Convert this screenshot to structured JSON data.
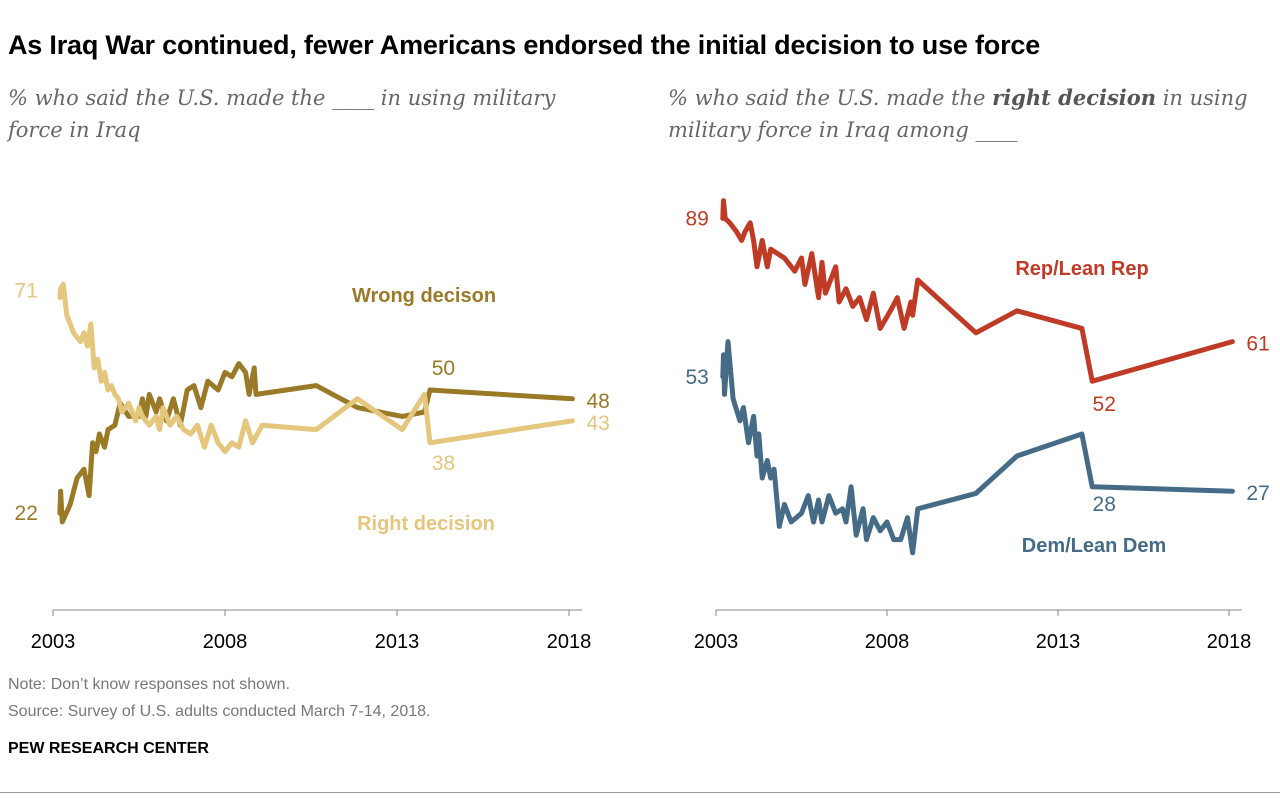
{
  "title": "As Iraq War continued, fewer Americans endorsed the initial decision to use force",
  "left_subtitle": "% who said the U.S. made the ____ in using military force in Iraq",
  "right_subtitle": {
    "pre": "% who said the U.S. made the ",
    "bold": "right decision",
    "post": " in using military force in Iraq among ____"
  },
  "note": "Note: Don’t know responses not shown.",
  "source": "Source: Survey of U.S. adults conducted March 7-14, 2018.",
  "brand": "PEW RESEARCH CENTER",
  "chart_data": [
    {
      "type": "line",
      "xlim": [
        2003,
        2018
      ],
      "ylim": [
        0,
        100
      ],
      "xticks": [
        "2003",
        "2008",
        "2013",
        "2018"
      ],
      "grid": false,
      "series": [
        {
          "name": "Wrong decison",
          "color": "#9a7a26",
          "labels": [
            {
              "text": "22",
              "x": 2003.2,
              "y": 22
            },
            {
              "text": "50",
              "x": 2014,
              "y": 50
            },
            {
              "text": "48",
              "x": 2018.1,
              "y": 48
            }
          ],
          "points": [
            [
              2003.2,
              22
            ],
            [
              2003.22,
              27
            ],
            [
              2003.27,
              20
            ],
            [
              2003.5,
              24
            ],
            [
              2003.7,
              30
            ],
            [
              2003.9,
              32
            ],
            [
              2004.05,
              26
            ],
            [
              2004.15,
              38
            ],
            [
              2004.25,
              36
            ],
            [
              2004.35,
              40
            ],
            [
              2004.5,
              37
            ],
            [
              2004.6,
              41
            ],
            [
              2004.8,
              42
            ],
            [
              2004.95,
              47
            ],
            [
              2005.2,
              44
            ],
            [
              2005.5,
              44
            ],
            [
              2005.6,
              48
            ],
            [
              2005.7,
              44
            ],
            [
              2005.8,
              49
            ],
            [
              2006.0,
              45
            ],
            [
              2006.1,
              48
            ],
            [
              2006.3,
              43
            ],
            [
              2006.5,
              48
            ],
            [
              2006.7,
              42
            ],
            [
              2006.9,
              50
            ],
            [
              2007.1,
              51
            ],
            [
              2007.3,
              46
            ],
            [
              2007.5,
              52
            ],
            [
              2007.8,
              50
            ],
            [
              2008.0,
              54
            ],
            [
              2008.2,
              53
            ],
            [
              2008.4,
              56
            ],
            [
              2008.6,
              54
            ],
            [
              2008.7,
              49
            ],
            [
              2008.85,
              55
            ],
            [
              2008.9,
              49
            ],
            [
              2010.65,
              51
            ],
            [
              2011.85,
              46
            ],
            [
              2013.15,
              44
            ],
            [
              2013.8,
              45
            ],
            [
              2013.96,
              50
            ],
            [
              2018.1,
              48
            ]
          ]
        },
        {
          "name": "Right decision",
          "color": "#e4c67c",
          "labels": [
            {
              "text": "71",
              "x": 2003.2,
              "y": 71
            },
            {
              "text": "38",
              "x": 2014,
              "y": 38
            },
            {
              "text": "43",
              "x": 2018.1,
              "y": 43
            }
          ],
          "points": [
            [
              2003.2,
              71
            ],
            [
              2003.22,
              73
            ],
            [
              2003.3,
              74
            ],
            [
              2003.4,
              67
            ],
            [
              2003.6,
              63
            ],
            [
              2003.8,
              61
            ],
            [
              2003.9,
              63
            ],
            [
              2004.0,
              60
            ],
            [
              2004.1,
              65
            ],
            [
              2004.2,
              55
            ],
            [
              2004.3,
              57
            ],
            [
              2004.4,
              52
            ],
            [
              2004.5,
              54
            ],
            [
              2004.6,
              50
            ],
            [
              2004.7,
              51
            ],
            [
              2004.8,
              49
            ],
            [
              2004.9,
              48
            ],
            [
              2005.0,
              45
            ],
            [
              2005.2,
              47
            ],
            [
              2005.4,
              43
            ],
            [
              2005.5,
              46
            ],
            [
              2005.6,
              44
            ],
            [
              2005.8,
              42
            ],
            [
              2006.0,
              44
            ],
            [
              2006.1,
              41
            ],
            [
              2006.2,
              46
            ],
            [
              2006.4,
              42
            ],
            [
              2006.6,
              44
            ],
            [
              2006.8,
              41
            ],
            [
              2007.0,
              40
            ],
            [
              2007.2,
              42
            ],
            [
              2007.4,
              37
            ],
            [
              2007.6,
              42
            ],
            [
              2007.8,
              38
            ],
            [
              2008.0,
              36
            ],
            [
              2008.2,
              38
            ],
            [
              2008.4,
              37
            ],
            [
              2008.6,
              43
            ],
            [
              2008.8,
              38
            ],
            [
              2009.08,
              42
            ],
            [
              2010.65,
              41
            ],
            [
              2011.85,
              48
            ],
            [
              2013.15,
              41
            ],
            [
              2013.8,
              49
            ],
            [
              2013.96,
              38
            ],
            [
              2018.1,
              43
            ]
          ]
        }
      ]
    },
    {
      "type": "line",
      "xlim": [
        2003,
        2018
      ],
      "ylim": [
        0,
        100
      ],
      "xticks": [
        "2003",
        "2008",
        "2013",
        "2018"
      ],
      "grid": false,
      "series": [
        {
          "name": "Rep/Lean Rep",
          "color": "#bf3b26",
          "labels": [
            {
              "text": "89",
              "x": 2003.2,
              "y": 89
            },
            {
              "text": "52",
              "x": 2014,
              "y": 52
            },
            {
              "text": "61",
              "x": 2018.1,
              "y": 61
            }
          ],
          "points": [
            [
              2003.2,
              89
            ],
            [
              2003.22,
              93
            ],
            [
              2003.27,
              89
            ],
            [
              2003.4,
              88
            ],
            [
              2003.6,
              86
            ],
            [
              2003.75,
              84
            ],
            [
              2003.85,
              86
            ],
            [
              2004.0,
              88
            ],
            [
              2004.1,
              84
            ],
            [
              2004.2,
              78
            ],
            [
              2004.35,
              84
            ],
            [
              2004.5,
              78
            ],
            [
              2004.6,
              82
            ],
            [
              2004.8,
              81
            ],
            [
              2005.0,
              80
            ],
            [
              2005.3,
              77
            ],
            [
              2005.5,
              80
            ],
            [
              2005.6,
              74
            ],
            [
              2005.8,
              81
            ],
            [
              2006.0,
              71
            ],
            [
              2006.1,
              79
            ],
            [
              2006.2,
              72
            ],
            [
              2006.5,
              78
            ],
            [
              2006.6,
              70
            ],
            [
              2006.8,
              73
            ],
            [
              2007.0,
              69
            ],
            [
              2007.2,
              71
            ],
            [
              2007.4,
              66
            ],
            [
              2007.6,
              72
            ],
            [
              2007.8,
              64
            ],
            [
              2008.1,
              68
            ],
            [
              2008.3,
              71
            ],
            [
              2008.5,
              64
            ],
            [
              2008.7,
              70
            ],
            [
              2008.75,
              67
            ],
            [
              2008.9,
              75
            ],
            [
              2010.6,
              63
            ],
            [
              2011.8,
              68
            ],
            [
              2013.7,
              64
            ],
            [
              2014.0,
              52
            ],
            [
              2018.1,
              61
            ]
          ]
        },
        {
          "name": "Dem/Lean Dem",
          "color": "#456b87",
          "labels": [
            {
              "text": "53",
              "x": 2003.2,
              "y": 53
            },
            {
              "text": "28",
              "x": 2014,
              "y": 28
            },
            {
              "text": "27",
              "x": 2018.1,
              "y": 27
            }
          ],
          "points": [
            [
              2003.2,
              53
            ],
            [
              2003.22,
              58
            ],
            [
              2003.25,
              49
            ],
            [
              2003.35,
              61
            ],
            [
              2003.5,
              48
            ],
            [
              2003.7,
              43
            ],
            [
              2003.8,
              46
            ],
            [
              2003.95,
              38
            ],
            [
              2004.1,
              44
            ],
            [
              2004.2,
              35
            ],
            [
              2004.25,
              40
            ],
            [
              2004.35,
              30
            ],
            [
              2004.5,
              34
            ],
            [
              2004.6,
              30
            ],
            [
              2004.7,
              32
            ],
            [
              2004.85,
              19
            ],
            [
              2005.0,
              24
            ],
            [
              2005.2,
              20
            ],
            [
              2005.5,
              22
            ],
            [
              2005.7,
              26
            ],
            [
              2005.85,
              20
            ],
            [
              2006.0,
              25
            ],
            [
              2006.1,
              20
            ],
            [
              2006.3,
              26
            ],
            [
              2006.5,
              22
            ],
            [
              2006.7,
              23
            ],
            [
              2006.8,
              20
            ],
            [
              2006.95,
              28
            ],
            [
              2007.1,
              17
            ],
            [
              2007.3,
              23
            ],
            [
              2007.4,
              16
            ],
            [
              2007.6,
              21
            ],
            [
              2007.8,
              18
            ],
            [
              2008.0,
              20
            ],
            [
              2008.2,
              16
            ],
            [
              2008.4,
              16
            ],
            [
              2008.6,
              21
            ],
            [
              2008.75,
              13
            ],
            [
              2008.9,
              23
            ],
            [
              2010.6,
              26.5
            ],
            [
              2011.8,
              35
            ],
            [
              2013.7,
              40
            ],
            [
              2014.0,
              28
            ],
            [
              2018.1,
              27
            ]
          ]
        }
      ]
    }
  ]
}
